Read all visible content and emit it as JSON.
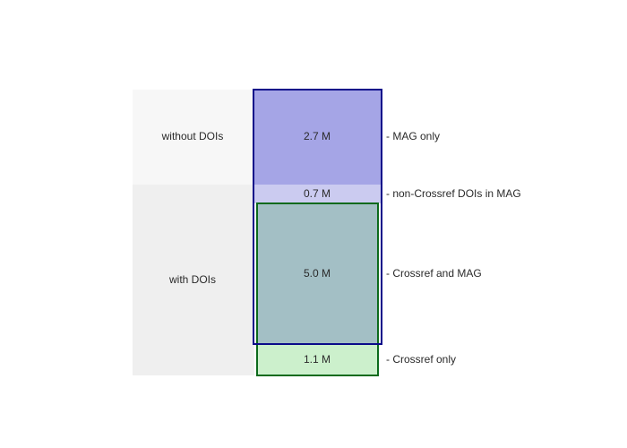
{
  "chart_data": {
    "type": "stacked-block",
    "unit": "M",
    "groups": [
      {
        "label": "without DOIs"
      },
      {
        "label": "with DOIs"
      }
    ],
    "segments": [
      {
        "value": 2.7,
        "value_label": "2.7 M",
        "description": "- MAG only",
        "color": "#a5a5e6"
      },
      {
        "value": 0.7,
        "value_label": "0.7 M",
        "description": "- non-Crossref DOIs in MAG",
        "color": "#cbcbf0"
      },
      {
        "value": 5.0,
        "value_label": "5.0 M",
        "description": "- Crossref and MAG",
        "color": "#a3bfc5"
      },
      {
        "value": 1.1,
        "value_label": "1.1 M",
        "description": "- Crossref only",
        "color": "#ccf0cc"
      }
    ],
    "mag_outline_color": "#0b0b8a",
    "crossref_outline_color": "#0c6a1c",
    "band_colors": [
      "#f7f7f7",
      "#efefef"
    ]
  }
}
